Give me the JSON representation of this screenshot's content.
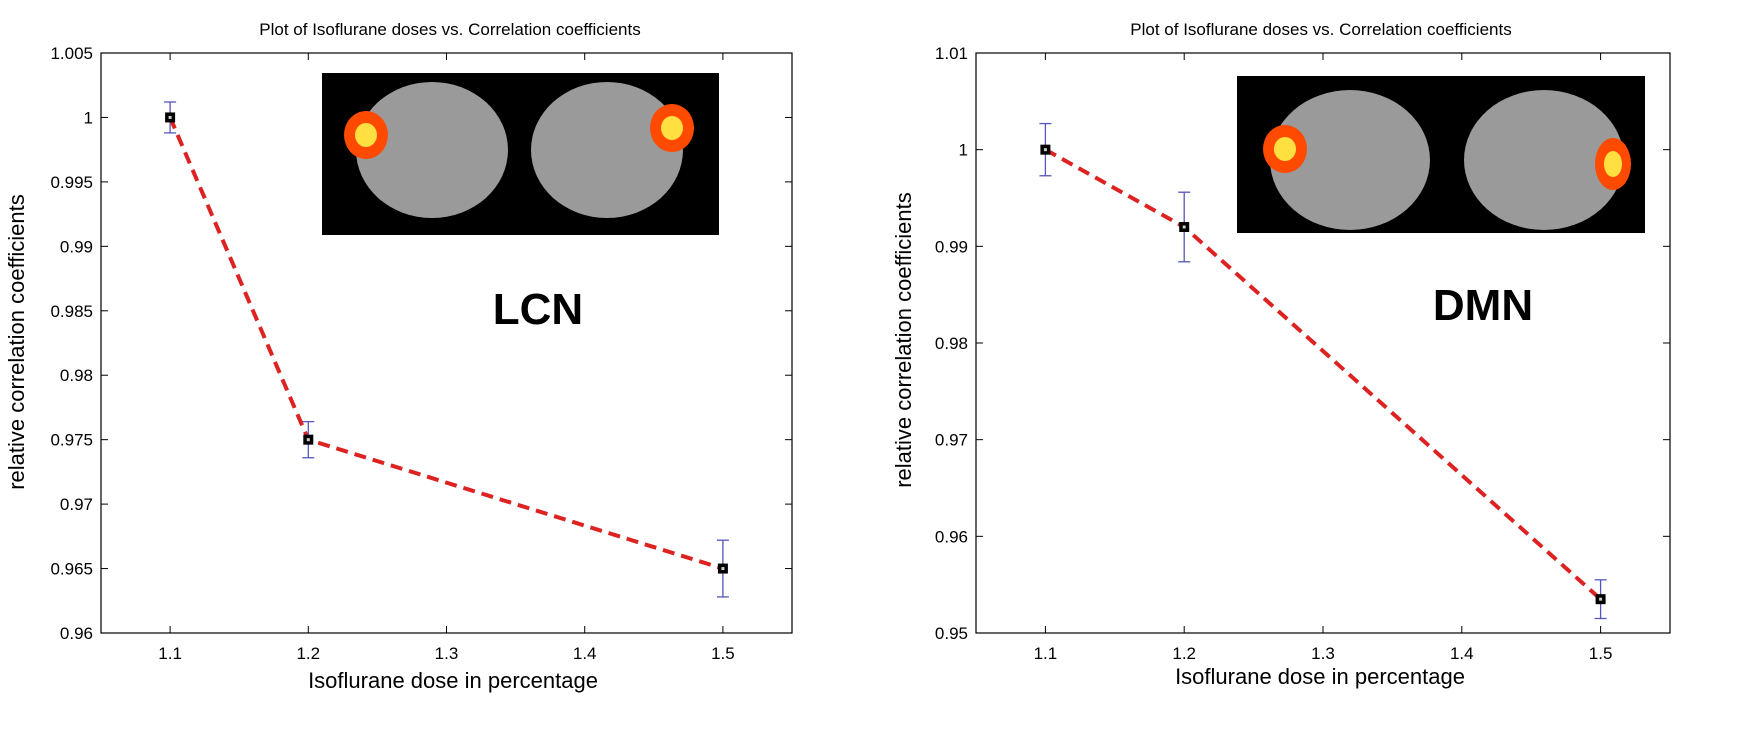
{
  "colors": {
    "line": "#dd2222",
    "errorbar": "#5555bb",
    "marker_fill": "#000000",
    "marker_dot": "#cccccc",
    "axes": "#000000",
    "inset_background": "#000000",
    "brain_tissue": "#9a9a9a",
    "activation_hot": "#ff4a00",
    "activation_core": "#ffe040"
  },
  "chart_data": [
    {
      "type": "line",
      "title": "Plot of Isoflurane doses vs. Correlation coefficients",
      "xlabel": "Isoflurane dose in percentage",
      "ylabel": "relative correlation coefficients",
      "xlim": [
        1.05,
        1.55
      ],
      "ylim": [
        0.96,
        1.005
      ],
      "x_ticks": [
        1.1,
        1.2,
        1.3,
        1.4,
        1.5
      ],
      "x_tick_labels": [
        "1.1",
        "1.2",
        "1.3",
        "1.4",
        "1.5"
      ],
      "y_ticks": [
        0.96,
        0.965,
        0.97,
        0.975,
        0.98,
        0.985,
        0.99,
        0.995,
        1.0,
        1.005
      ],
      "y_tick_labels": [
        "0.96",
        "0.965",
        "0.97",
        "0.975",
        "0.98",
        "0.985",
        "0.99",
        "0.995",
        "1",
        "1.005"
      ],
      "grid": false,
      "series": [
        {
          "x": [
            1.1,
            1.2,
            1.5
          ],
          "values": [
            1.0,
            0.975,
            0.965
          ],
          "error": [
            0.0012,
            0.0014,
            0.0022
          ],
          "style": "dashed",
          "marker": "square"
        }
      ],
      "annotation": "LCN",
      "inset_image": "brain-activation-left-right"
    },
    {
      "type": "line",
      "title": "Plot of Isoflurane doses vs. Correlation coefficients",
      "xlabel": "Isoflurane dose in percentage",
      "ylabel": "relative correlation coefficients",
      "xlim": [
        1.05,
        1.55
      ],
      "ylim": [
        0.95,
        1.01
      ],
      "x_ticks": [
        1.1,
        1.2,
        1.3,
        1.4,
        1.5
      ],
      "x_tick_labels": [
        "1.1",
        "1.2",
        "1.3",
        "1.4",
        "1.5"
      ],
      "y_ticks": [
        0.95,
        0.96,
        0.97,
        0.98,
        0.99,
        1.0,
        1.01
      ],
      "y_tick_labels": [
        "0.95",
        "0.96",
        "0.97",
        "0.98",
        "0.99",
        "1",
        "1.01"
      ],
      "grid": false,
      "series": [
        {
          "x": [
            1.1,
            1.2,
            1.5
          ],
          "values": [
            1.0,
            0.992,
            0.9535
          ],
          "error": [
            0.0027,
            0.0036,
            0.002
          ],
          "style": "dashed",
          "marker": "square"
        }
      ],
      "annotation": "DMN",
      "inset_image": "brain-activation-left-right"
    }
  ]
}
